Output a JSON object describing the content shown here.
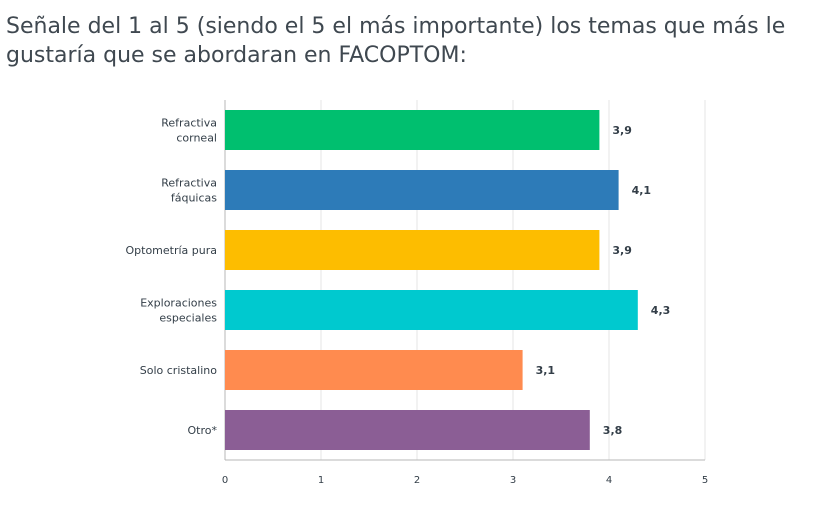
{
  "question": {
    "title": "Señale del 1 al 5 (siendo el 5 el más importante) los temas que más le gustaría que se abordaran en FACOPTOM:"
  },
  "chart_data": {
    "type": "bar",
    "orientation": "horizontal",
    "categories": [
      [
        "Refractiva",
        "corneal"
      ],
      [
        "Refractiva",
        "fáquicas"
      ],
      [
        "Optometría pura"
      ],
      [
        "Exploraciones",
        "especiales"
      ],
      [
        "Solo cristalino"
      ],
      [
        "Otro*"
      ]
    ],
    "values": [
      3.9,
      4.1,
      3.9,
      4.3,
      3.1,
      3.8
    ],
    "value_labels": [
      "3,9",
      "4,1",
      "3,9",
      "4,3",
      "3,1",
      "3,8"
    ],
    "colors": [
      "#00bf6f",
      "#2d7bb8",
      "#fdbd00",
      "#00c9cf",
      "#ff8b4f",
      "#8b5e95"
    ],
    "xlim": [
      0,
      5
    ],
    "xticks": [
      0,
      1,
      2,
      3,
      4,
      5
    ],
    "grid": true,
    "title": "",
    "xlabel": "",
    "ylabel": ""
  }
}
